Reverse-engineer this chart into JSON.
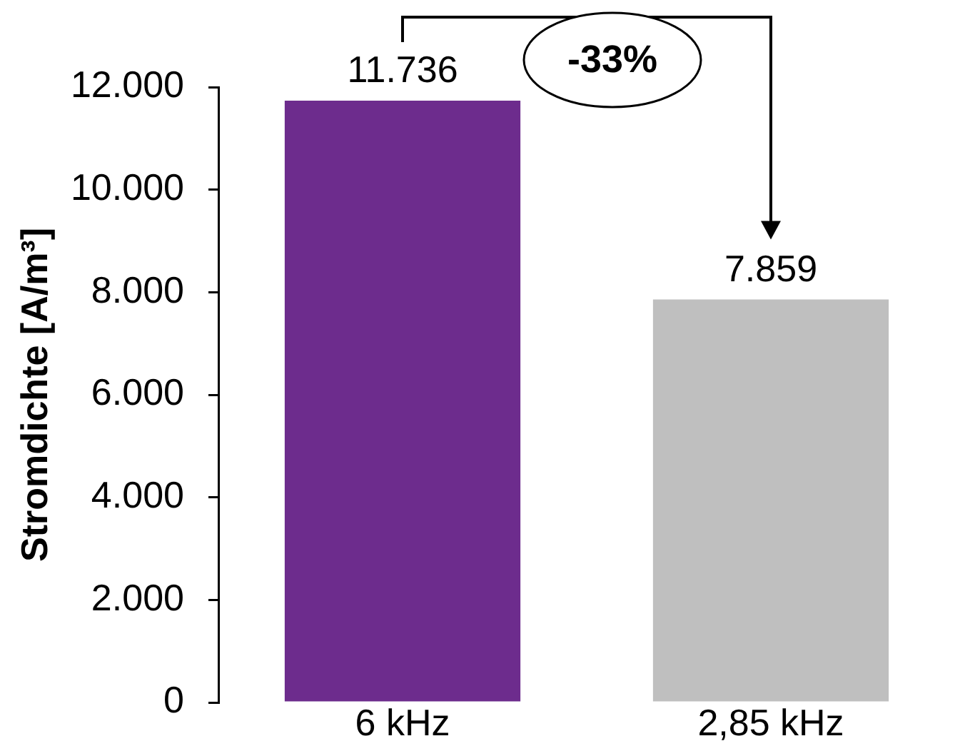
{
  "chart_data": {
    "type": "bar",
    "ylabel": "Stromdichte [A/m³]",
    "categories": [
      "6 kHz",
      "2,85 kHz"
    ],
    "values": [
      11736,
      7859
    ],
    "colors": [
      "#6d2c8d",
      "#bfbfbf"
    ],
    "value_labels": [
      "11.736",
      "7.859"
    ],
    "ylim": [
      0,
      12000
    ],
    "yticks": [
      0,
      {
        "value": 2000,
        "label": "2.000"
      },
      {
        "value": 4000,
        "label": "4.000"
      },
      {
        "value": 6000,
        "label": "6.000"
      },
      {
        "value": 8000,
        "label": "8.000"
      },
      {
        "value": 10000,
        "label": "10.000"
      },
      {
        "value": 12000,
        "label": "12.000"
      }
    ],
    "grid": false,
    "legend": false,
    "annotations": [
      "-33%"
    ]
  }
}
